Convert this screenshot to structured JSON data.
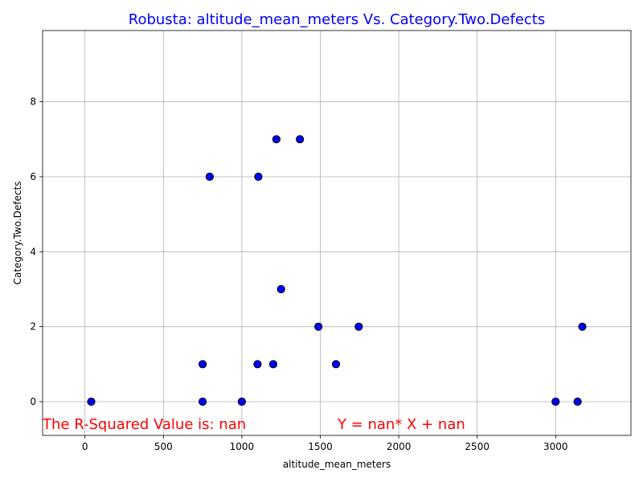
{
  "chart_data": {
    "type": "scatter",
    "title": "Robusta: altitude_mean_meters Vs. Category.Two.Defects",
    "xlabel": "altitude_mean_meters",
    "ylabel": "Category.Two.Defects",
    "xlim": [
      -270,
      3480
    ],
    "ylim": [
      -0.9,
      9.9
    ],
    "xticks": [
      0,
      500,
      1000,
      1500,
      2000,
      2500,
      3000
    ],
    "yticks": [
      0,
      2,
      4,
      6,
      8
    ],
    "grid": true,
    "points": [
      {
        "x": 40,
        "y": 0
      },
      {
        "x": 750,
        "y": 0
      },
      {
        "x": 750,
        "y": 1
      },
      {
        "x": 795,
        "y": 6
      },
      {
        "x": 1000,
        "y": 0
      },
      {
        "x": 1100,
        "y": 1
      },
      {
        "x": 1105,
        "y": 6
      },
      {
        "x": 1200,
        "y": 1
      },
      {
        "x": 1220,
        "y": 7
      },
      {
        "x": 1250,
        "y": 3
      },
      {
        "x": 1370,
        "y": 7
      },
      {
        "x": 1488,
        "y": 2
      },
      {
        "x": 1600,
        "y": 1
      },
      {
        "x": 1745,
        "y": 2
      },
      {
        "x": 3000,
        "y": 0
      },
      {
        "x": 3140,
        "y": 0
      },
      {
        "x": 3170,
        "y": 2
      }
    ],
    "annotations": [
      {
        "text": "The R-Squared Value is: nan",
        "x": -270,
        "y": -0.6
      },
      {
        "text": "Y = nan* X + nan",
        "x": 1610,
        "y": -0.6
      }
    ]
  },
  "colors": {
    "title": "#0000ff",
    "marker_fill": "#0000ff",
    "marker_edge": "#000000",
    "annotation": "#ff0000",
    "grid": "#b0b0b0",
    "axes": "#000000"
  }
}
